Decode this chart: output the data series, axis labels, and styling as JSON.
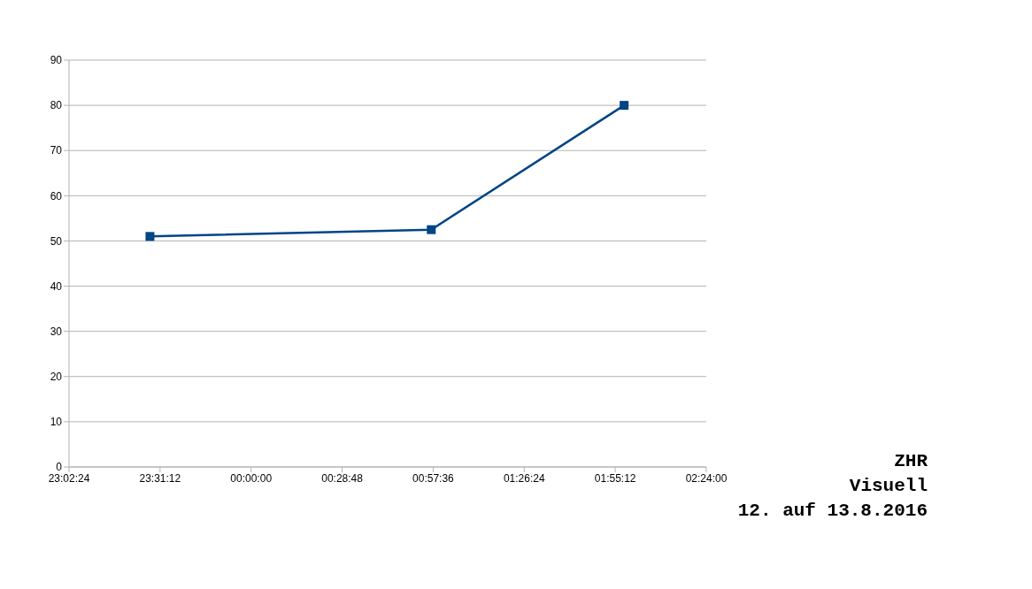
{
  "chart_data": {
    "type": "line",
    "x": [
      "2016-08-12T23:28",
      "2016-08-13T00:57",
      "2016-08-13T01:58"
    ],
    "series": [
      {
        "color": "#004586",
        "values": [
          51,
          52.5,
          80
        ]
      }
    ],
    "xlim": [
      "2016-08-12T23:02:24",
      "2016-08-13T02:24"
    ],
    "xticks": [
      {
        "value": "2016-08-12T23:02:24",
        "label": "23:02:24"
      },
      {
        "value": "2016-08-12T23:31:12",
        "label": "23:31:12"
      },
      {
        "value": "2016-08-13T00:00",
        "label": "00:00:00"
      },
      {
        "value": "2016-08-13T00:28:48",
        "label": "00:28:48"
      },
      {
        "value": "2016-08-13T00:57:36",
        "label": "00:57:36"
      },
      {
        "value": "2016-08-13T01:26:24",
        "label": "01:26:24"
      },
      {
        "value": "2016-08-13T01:55:12",
        "label": "01:55:12"
      },
      {
        "value": "2016-08-13T02:24",
        "label": "02:24:00"
      }
    ],
    "ylim": [
      0,
      90
    ],
    "yticks": [
      0,
      10,
      20,
      30,
      40,
      50,
      60,
      70,
      80,
      90
    ],
    "grid": "y",
    "marker": "square",
    "line_style": "solid",
    "annotations": [
      "ZHR",
      "Visuell",
      "12. auf 13.8.2016"
    ]
  }
}
